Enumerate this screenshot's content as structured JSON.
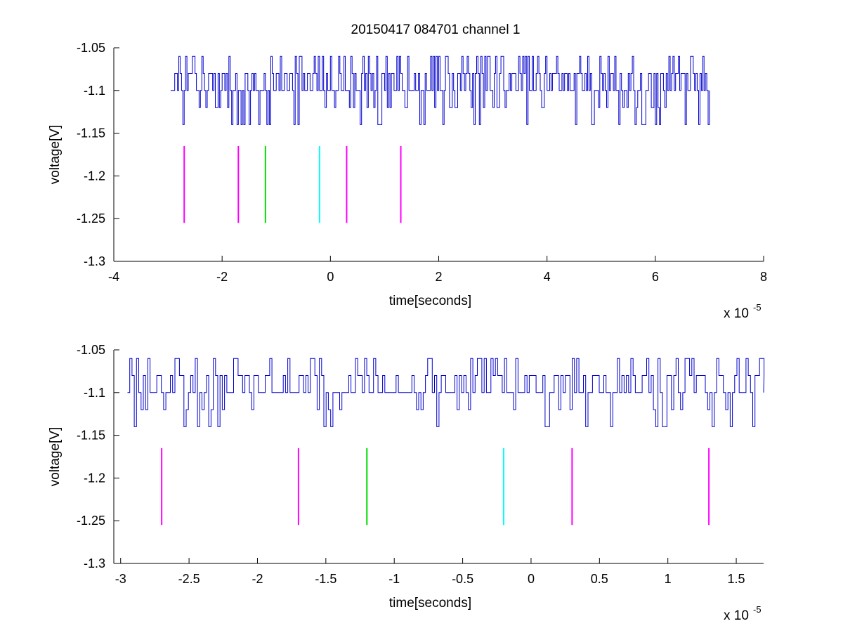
{
  "title": "20150417 084701 channel 1",
  "colors": {
    "trace": "#0000cc",
    "magenta": "#ff00ff",
    "green": "#00dd00",
    "cyan": "#00ffff",
    "axis": "#000000"
  },
  "chart_data": [
    {
      "type": "line",
      "title": "20150417 084701 channel 1",
      "xlabel": "time[seconds]",
      "ylabel": "voltage[V]",
      "x_scale_label": "x 10",
      "x_scale_exponent": "-5",
      "xlim": [
        -4,
        8
      ],
      "ylim": [
        -1.3,
        -1.05
      ],
      "x_ticks": [
        -4,
        -2,
        0,
        2,
        4,
        6,
        8
      ],
      "x_tick_labels": [
        "-4",
        "-2",
        "0",
        "2",
        "4",
        "6",
        "8"
      ],
      "y_ticks": [
        -1.05,
        -1.1,
        -1.15,
        -1.2,
        -1.25,
        -1.3
      ],
      "y_tick_labels": [
        "-1.05",
        "-1.1",
        "-1.15",
        "-1.2",
        "-1.25",
        "-1.3"
      ],
      "series": [
        {
          "kind": "trace",
          "x_range": [
            -2.95,
            7.0
          ],
          "levels": [
            -1.06,
            -1.08,
            -1.1,
            -1.12,
            -1.14
          ],
          "baseline": -1.1,
          "color": "#0000cc"
        }
      ],
      "markers": [
        {
          "x": -2.7,
          "y_range": [
            -1.255,
            -1.165
          ],
          "color": "#ff00ff"
        },
        {
          "x": -1.7,
          "y_range": [
            -1.255,
            -1.165
          ],
          "color": "#ff00ff"
        },
        {
          "x": -1.2,
          "y_range": [
            -1.255,
            -1.165
          ],
          "color": "#00dd00"
        },
        {
          "x": -0.2,
          "y_range": [
            -1.255,
            -1.165
          ],
          "color": "#00ffff"
        },
        {
          "x": 0.3,
          "y_range": [
            -1.255,
            -1.165
          ],
          "color": "#ff00ff"
        },
        {
          "x": 1.3,
          "y_range": [
            -1.255,
            -1.165
          ],
          "color": "#ff00ff"
        }
      ],
      "grid": false
    },
    {
      "type": "line",
      "title": "",
      "xlabel": "time[seconds]",
      "ylabel": "voltage[V]",
      "x_scale_label": "x 10",
      "x_scale_exponent": "-5",
      "xlim": [
        -3.05,
        1.7
      ],
      "ylim": [
        -1.3,
        -1.05
      ],
      "x_ticks": [
        -3,
        -2.5,
        -2,
        -1.5,
        -1,
        -0.5,
        0,
        0.5,
        1,
        1.5
      ],
      "x_tick_labels": [
        "-3",
        "-2.5",
        "-2",
        "-1.5",
        "-1",
        "-0.5",
        "0",
        "0.5",
        "1",
        "1.5"
      ],
      "y_ticks": [
        -1.05,
        -1.1,
        -1.15,
        -1.2,
        -1.25,
        -1.3
      ],
      "y_tick_labels": [
        "-1.05",
        "-1.1",
        "-1.15",
        "-1.2",
        "-1.25",
        "-1.3"
      ],
      "series": [
        {
          "kind": "trace",
          "x_range": [
            -2.95,
            1.7
          ],
          "levels": [
            -1.06,
            -1.08,
            -1.1,
            -1.12,
            -1.14
          ],
          "baseline": -1.1,
          "color": "#0000cc"
        }
      ],
      "markers": [
        {
          "x": -2.7,
          "y_range": [
            -1.255,
            -1.165
          ],
          "color": "#ff00ff"
        },
        {
          "x": -1.7,
          "y_range": [
            -1.255,
            -1.165
          ],
          "color": "#ff00ff"
        },
        {
          "x": -1.2,
          "y_range": [
            -1.255,
            -1.165
          ],
          "color": "#00dd00"
        },
        {
          "x": -0.2,
          "y_range": [
            -1.255,
            -1.165
          ],
          "color": "#00ffff"
        },
        {
          "x": 0.3,
          "y_range": [
            -1.255,
            -1.165
          ],
          "color": "#ff00ff"
        },
        {
          "x": 1.3,
          "y_range": [
            -1.255,
            -1.165
          ],
          "color": "#ff00ff"
        }
      ],
      "grid": false
    }
  ]
}
